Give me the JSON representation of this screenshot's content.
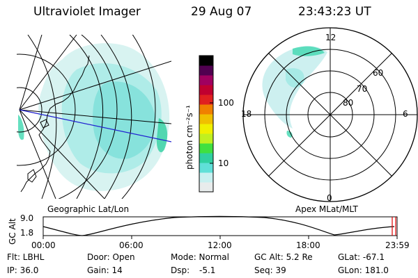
{
  "header": {
    "instrument": "Ultraviolet Imager",
    "date": "29 Aug 07",
    "time": "23:43:23 UT"
  },
  "geographic_panel": {
    "label": "Geographic Lat/Lon"
  },
  "polar_panel": {
    "label": "Apex MLat/MLT",
    "mlt_labels": {
      "top": "12",
      "left": "18",
      "right": "6",
      "bottom": "0"
    },
    "mlat_labels": [
      "60",
      "70",
      "80"
    ]
  },
  "colorbar": {
    "unit_label": "photon cm⁻²s⁻¹",
    "ticks": [
      "100",
      "10"
    ],
    "colors": [
      "#e8ecec",
      "#c8f0f0",
      "#60e0d8",
      "#30d0a0",
      "#40e040",
      "#c0f020",
      "#f0f000",
      "#f0c000",
      "#f08000",
      "#e02020",
      "#c00030",
      "#a00060",
      "#500050",
      "#000000"
    ]
  },
  "altitude_plot": {
    "axis_label": "GC Alt",
    "y_ticks": [
      "9.0",
      "1.8"
    ],
    "x_ticks": [
      "00:00",
      "06:00",
      "12:00",
      "18:00",
      "23:59"
    ]
  },
  "status": {
    "row1": {
      "flt": "Flt: LBHL",
      "door": "Door: Open",
      "mode": "Mode: Normal",
      "gc_alt": "GC Alt: 5.2 Re",
      "glat": "GLat: -67.1"
    },
    "row2": {
      "ip": "IP: 36.0",
      "gain": "Gain: 14",
      "dsp_label": "Dsp:",
      "dsp_value": "-5.1",
      "seq": "Seq: 39",
      "glon": "GLon: 181.0"
    }
  }
}
